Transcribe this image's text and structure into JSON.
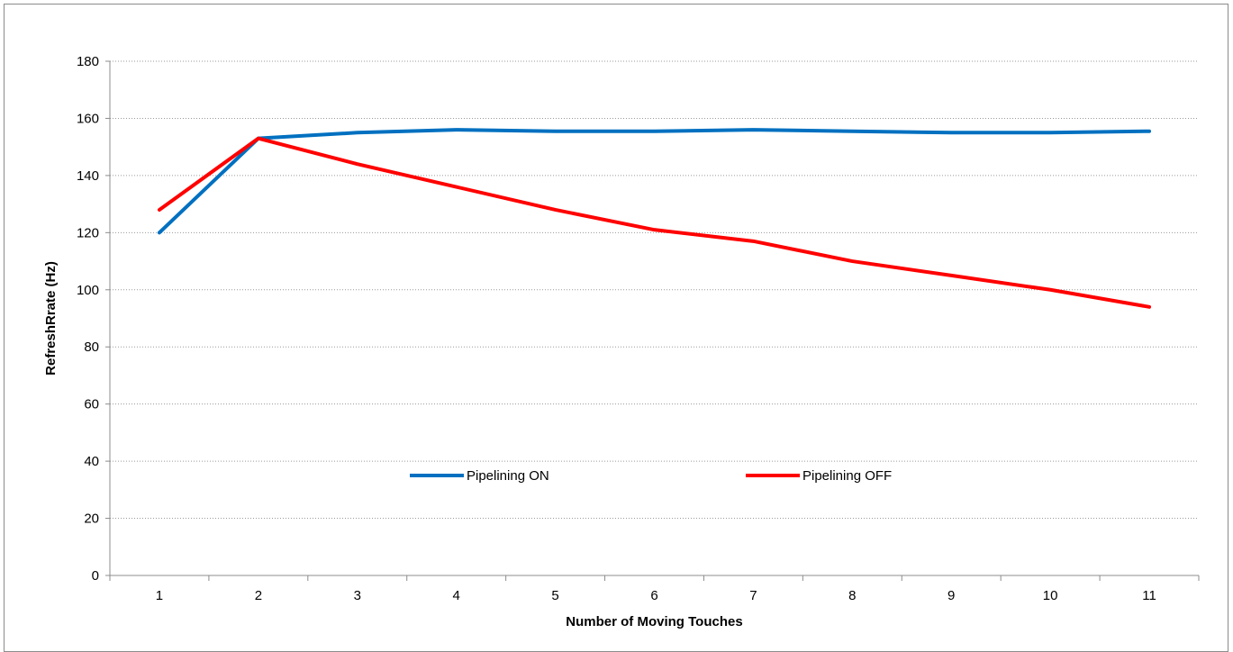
{
  "chart_data": {
    "type": "line",
    "categories": [
      "1",
      "2",
      "3",
      "4",
      "5",
      "6",
      "7",
      "8",
      "9",
      "10",
      "11"
    ],
    "series": [
      {
        "name": "Pipelining ON",
        "color": "#0070C0",
        "values": [
          120,
          153,
          155,
          156,
          155.5,
          155.5,
          156,
          155.5,
          155,
          155,
          155.5
        ]
      },
      {
        "name": "Pipelining OFF",
        "color": "#FF0000",
        "values": [
          128,
          153,
          144,
          136,
          128,
          121,
          117,
          110,
          105,
          100,
          94
        ]
      }
    ],
    "xlabel": "Number of Moving Touches",
    "ylabel": "RefreshRrate (Hz)",
    "ylim": [
      0,
      180
    ],
    "yticks": [
      0,
      20,
      40,
      60,
      80,
      100,
      120,
      140,
      160,
      180
    ],
    "grid": true,
    "legend_position": "inside-bottom-center"
  }
}
